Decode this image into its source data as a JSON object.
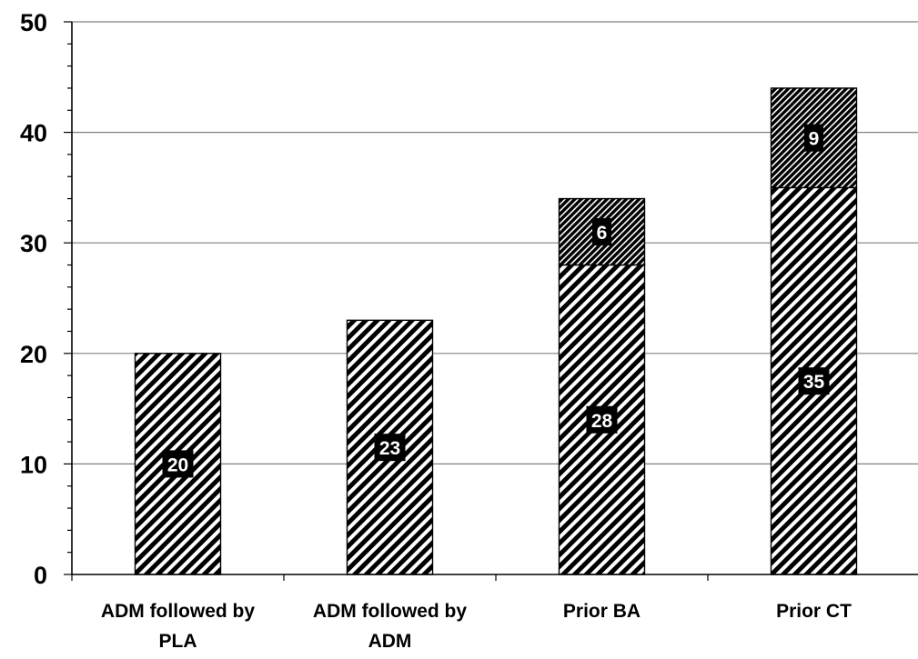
{
  "chart_data": {
    "type": "bar",
    "stacked": true,
    "categories": [
      [
        "ADM followed by",
        "PLA"
      ],
      [
        "ADM followed by",
        "ADM"
      ],
      [
        "Prior BA"
      ],
      [
        "Prior CT"
      ]
    ],
    "series": [
      {
        "values": [
          20,
          23,
          28,
          35
        ],
        "pattern": "wide-diagonal-stripes"
      },
      {
        "values": [
          0,
          0,
          6,
          9
        ],
        "pattern": "dense-diagonal-stripes"
      }
    ],
    "ylim": [
      0,
      50
    ],
    "yticks": [
      0,
      10,
      20,
      30,
      40,
      50
    ],
    "grid": true,
    "legend": false,
    "title": "",
    "xlabel": "",
    "ylabel": ""
  }
}
